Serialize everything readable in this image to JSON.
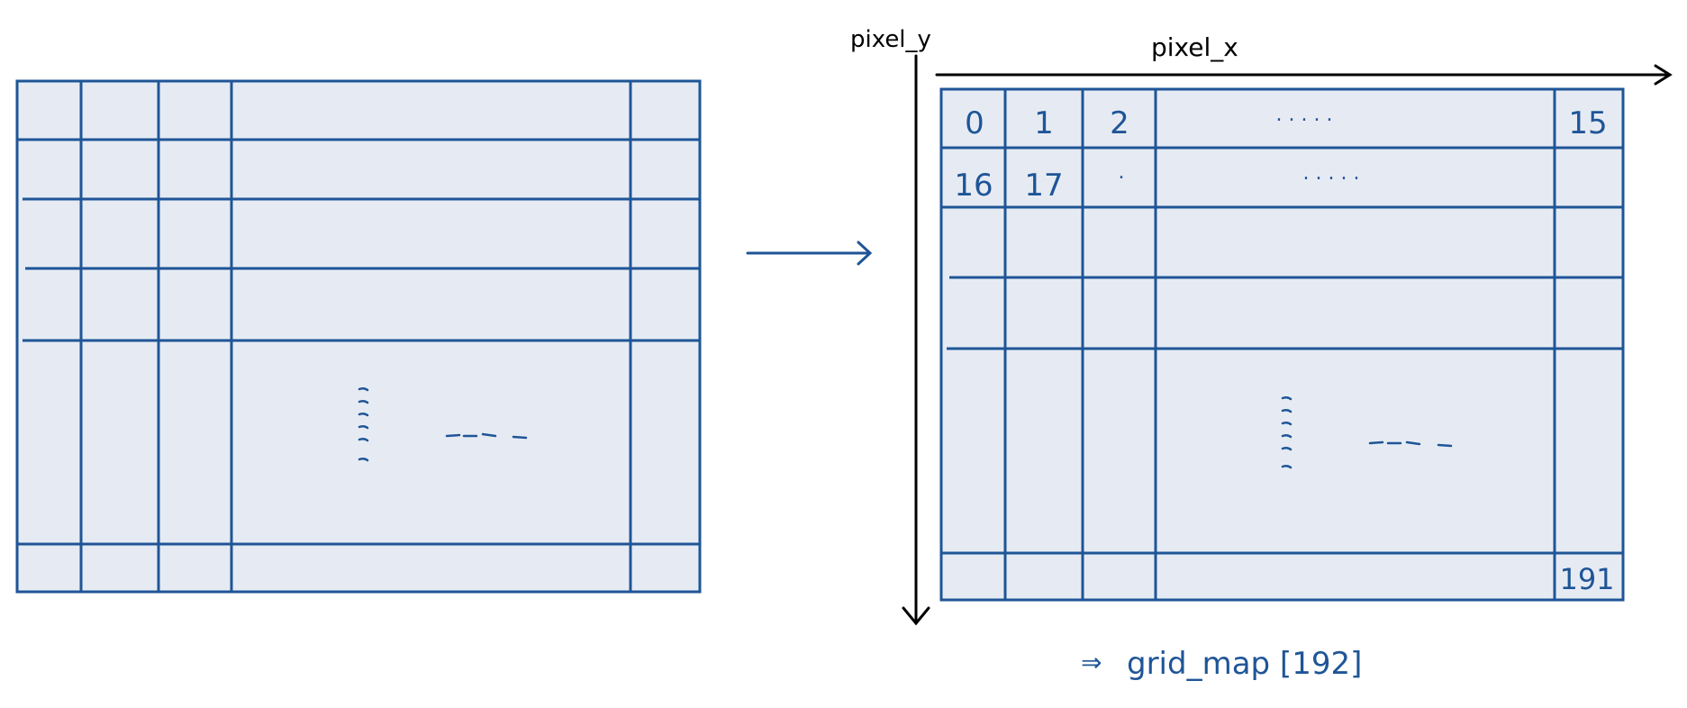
{
  "colors": {
    "grid_line": "#1f5597",
    "grid_fill": "#e6ebf3",
    "axis": "#000000",
    "label_blue": "#1f5597"
  },
  "axes": {
    "y_label": "pixel_y",
    "x_label": "pixel_x"
  },
  "cells": {
    "row1": [
      "0",
      "1",
      "2",
      ". . . . .",
      "15"
    ],
    "row2": [
      "16",
      "17",
      "."
    ],
    "row2_dots": ". . . . .",
    "last": "191"
  },
  "caption": {
    "arrow": "⇒",
    "text": "grid_map [192]"
  },
  "icons": {
    "transform": "right-arrow-icon"
  }
}
